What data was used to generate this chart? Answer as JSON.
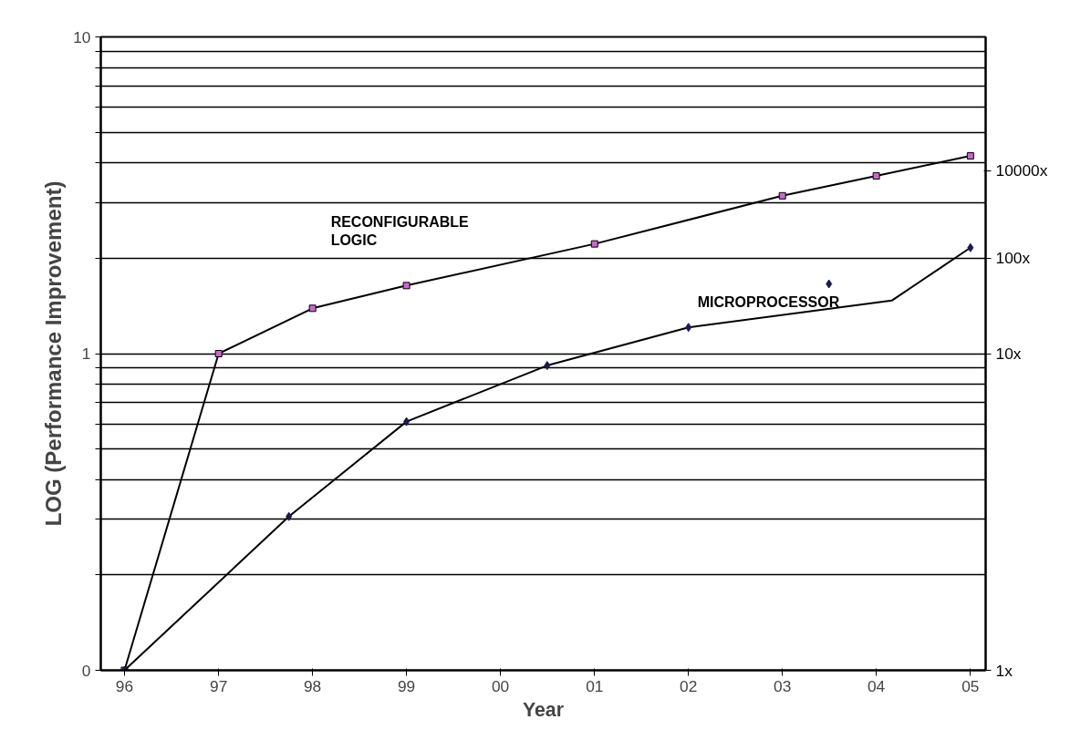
{
  "chart_data": {
    "type": "line",
    "xlabel": "Year",
    "ylabel": "LOG (Performance Improvement)",
    "log": "y",
    "grid": "y",
    "xlim": [
      "1995-10",
      "2005-03"
    ],
    "xticks": [
      {
        "value": "1996",
        "label": "96"
      },
      {
        "value": "1997",
        "label": "97"
      },
      {
        "value": "1998",
        "label": "98"
      },
      {
        "value": "1999",
        "label": "99"
      },
      {
        "value": "2000",
        "label": "00"
      },
      {
        "value": "2001",
        "label": "01"
      },
      {
        "value": "2002",
        "label": "02"
      },
      {
        "value": "2003",
        "label": "03"
      },
      {
        "value": "2004",
        "label": "04"
      },
      {
        "value": "2005",
        "label": "05"
      }
    ],
    "ylim": [
      0.1,
      10
    ],
    "yticks": [
      {
        "value": 0.1,
        "label": "0"
      },
      {
        "value": 0.2,
        "label": null
      },
      {
        "value": 0.3,
        "label": null
      },
      {
        "value": 0.4,
        "label": null
      },
      {
        "value": 0.5,
        "label": null
      },
      {
        "value": 0.6,
        "label": null
      },
      {
        "value": 0.7,
        "label": null
      },
      {
        "value": 0.8,
        "label": null
      },
      {
        "value": 0.9,
        "label": null
      },
      {
        "value": 1,
        "label": "1"
      },
      {
        "value": 2,
        "label": null
      },
      {
        "value": 3,
        "label": null
      },
      {
        "value": 4,
        "label": null
      },
      {
        "value": 5,
        "label": null
      },
      {
        "value": 6,
        "label": null
      },
      {
        "value": 7,
        "label": null
      },
      {
        "value": 8,
        "label": null
      },
      {
        "value": 9,
        "label": null
      },
      {
        "value": 10,
        "label": "10"
      }
    ],
    "series": [
      {
        "name": "RECONFIGURABLE\nLOGIC",
        "marker": "square",
        "color": "#000000",
        "x": [
          "1996",
          "1997",
          "1998",
          "1999",
          "2001",
          "2003",
          "2004",
          "2005"
        ],
        "values": [
          0.1,
          1,
          1.39,
          1.64,
          2.22,
          3.15,
          3.64,
          4.21
        ]
      },
      {
        "name": "MICROPROCESSOR",
        "marker": "none",
        "color": "#000000",
        "x": [
          "1996",
          "1997-10",
          "1999",
          "2000-07",
          "2002",
          "2004-03",
          "2005"
        ],
        "values": [
          0.1,
          0.306,
          0.61,
          0.917,
          1.21,
          1.47,
          2.16
        ]
      },
      {
        "type": "scatter",
        "marker": "diamond",
        "color": "#1a1a50",
        "x": [
          "1996",
          "1997-10",
          "1999",
          "2000-07",
          "2002",
          "2003-07",
          "2005"
        ],
        "values": [
          0.1,
          0.306,
          0.61,
          0.917,
          1.21,
          1.66,
          2.16
        ]
      }
    ],
    "annotations": [
      "1x",
      "10x",
      "100x",
      "10000x"
    ]
  }
}
